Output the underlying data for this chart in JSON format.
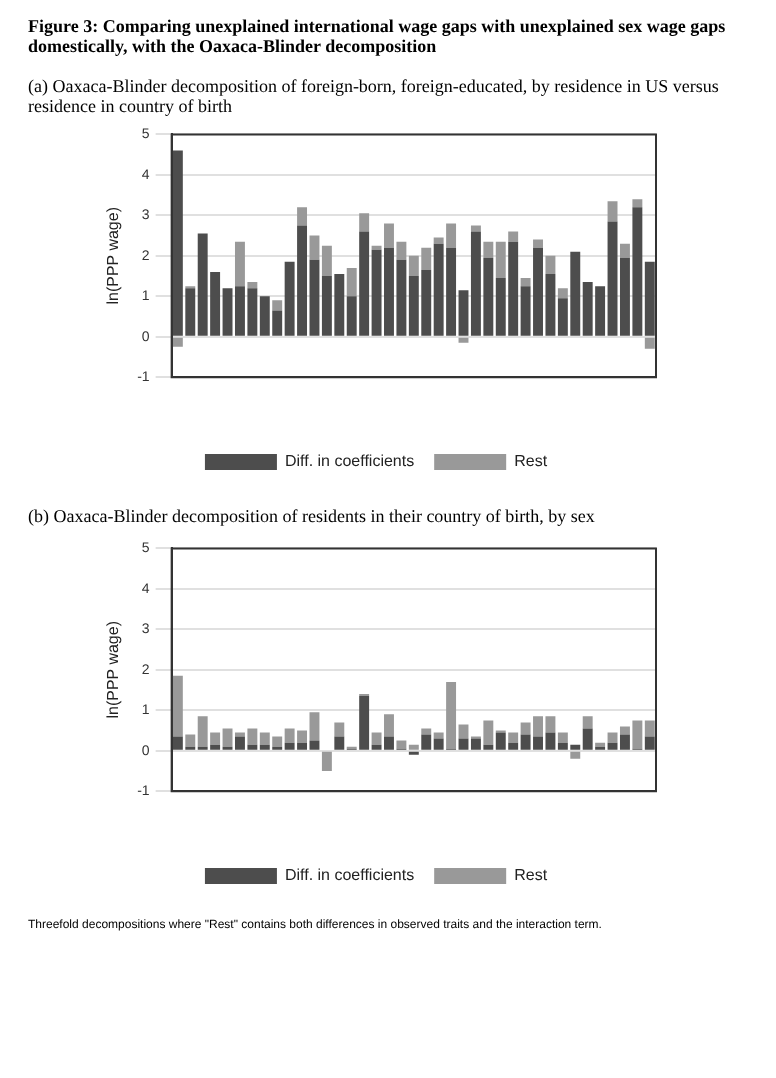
{
  "chart_data": [
    {
      "type": "bar",
      "title": "Figure 3: Comparing unexplained international wage gaps with unexplained sex wage gaps domestically, with the Oaxaca-Blinder decomposition",
      "subtitle": "(a) Oaxaca-Blinder decomposition of foreign-born, foreign-educated, by residence in US versus residence in country of birth",
      "ylabel": "ln(PPP wage)",
      "categories": [
        null,
        null,
        null,
        null,
        null,
        null,
        null,
        null,
        null,
        null,
        null,
        null,
        null,
        null,
        null,
        null,
        null,
        null,
        null,
        null,
        null,
        null,
        null,
        null,
        null,
        null,
        null,
        null,
        null,
        null,
        null,
        null,
        null,
        null,
        null,
        null,
        null,
        null,
        null
      ],
      "series": [
        {
          "name": "Diff. in coefficients",
          "color": "#4d4d4d",
          "values": [
            4.6,
            1.2,
            2.55,
            1.6,
            1.2,
            1.25,
            1.2,
            1.0,
            0.65,
            1.85,
            2.75,
            1.9,
            1.5,
            1.55,
            1.0,
            2.6,
            2.15,
            2.2,
            1.9,
            1.5,
            1.65,
            2.3,
            2.2,
            1.15,
            2.6,
            1.95,
            1.45,
            2.35,
            1.25,
            2.2,
            1.55,
            0.95,
            2.1,
            1.35,
            1.25,
            2.85,
            1.95,
            3.2,
            1.85
          ]
        },
        {
          "name": "Rest",
          "color": "#999999",
          "values": [
            -0.25,
            0.05,
            0,
            0,
            0,
            1.1,
            0.15,
            0,
            0.25,
            0,
            0.45,
            0.6,
            0.75,
            0,
            0.7,
            0.45,
            0.1,
            0.6,
            0.45,
            0.5,
            0.55,
            0.15,
            0.6,
            -0.15,
            0.15,
            0.4,
            0.9,
            0.25,
            0.2,
            0.2,
            0.45,
            0.25,
            0,
            0,
            0,
            0.5,
            0.35,
            0.2,
            -0.3
          ]
        }
      ],
      "stacked": true,
      "ylim": [
        -1,
        5
      ],
      "yticks": [
        -1,
        0,
        1,
        2,
        3,
        4,
        5
      ],
      "grid": "y",
      "legend": "bottom"
    },
    {
      "type": "bar",
      "title": "(b) Oaxaca-Blinder decomposition of residents in their country of birth, by sex",
      "ylabel": "ln(PPP wage)",
      "categories": [
        null,
        null,
        null,
        null,
        null,
        null,
        null,
        null,
        null,
        null,
        null,
        null,
        null,
        null,
        null,
        null,
        null,
        null,
        null,
        null,
        null,
        null,
        null,
        null,
        null,
        null,
        null,
        null,
        null,
        null,
        null,
        null,
        null,
        null,
        null,
        null,
        null,
        null,
        null
      ],
      "series": [
        {
          "name": "Diff. in coefficients",
          "color": "#4d4d4d",
          "values": [
            0.35,
            0.1,
            0.1,
            0.15,
            0.1,
            0.35,
            0.15,
            0.15,
            0.1,
            0.2,
            0.2,
            0.25,
            0,
            0.35,
            0.05,
            1.35,
            0.15,
            0.35,
            0.05,
            -0.1,
            0.4,
            0.3,
            0.05,
            0.3,
            0.3,
            0.15,
            0.45,
            0.2,
            0.4,
            0.35,
            0.45,
            0.2,
            0.15,
            0.55,
            0.1,
            0.2,
            0.4,
            0.05,
            0.35
          ]
        },
        {
          "name": "Rest",
          "color": "#999999",
          "values": [
            1.5,
            0.3,
            0.75,
            0.3,
            0.45,
            0.1,
            0.4,
            0.3,
            0.25,
            0.35,
            0.3,
            0.7,
            -0.5,
            0.35,
            0.05,
            0.05,
            0.3,
            0.55,
            0.2,
            0.15,
            0.15,
            0.15,
            1.65,
            0.35,
            0.05,
            0.6,
            0.05,
            0.25,
            0.3,
            0.5,
            0.4,
            0.25,
            -0.2,
            0.3,
            0.1,
            0.25,
            0.2,
            0.7,
            0.4
          ]
        }
      ],
      "stacked": true,
      "ylim": [
        -1,
        5
      ],
      "yticks": [
        -1,
        0,
        1,
        2,
        3,
        4,
        5
      ],
      "grid": "y",
      "legend": "bottom",
      "annotations": [
        "Threefold decompositions where \"Rest\" contains both differences in observed traits and the interaction term."
      ]
    }
  ]
}
